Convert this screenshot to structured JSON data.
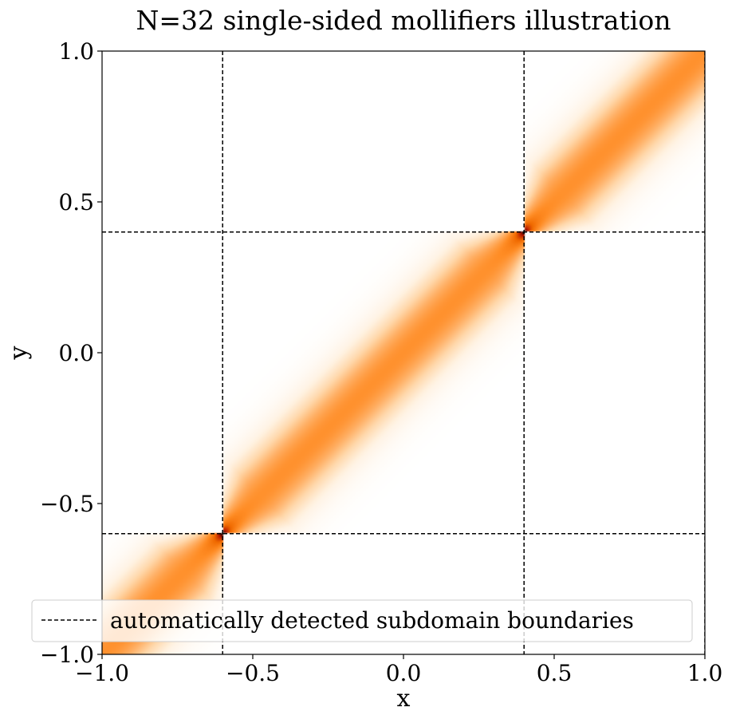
{
  "chart_data": {
    "type": "heatmap",
    "title": "N=32 single-sided mollifiers illustration",
    "xlabel": "x",
    "ylabel": "y",
    "xlim": [
      -1.0,
      1.0
    ],
    "ylim": [
      -1.0,
      1.0
    ],
    "xticks": [
      {
        "value": -1.0,
        "label": "−1.0"
      },
      {
        "value": -0.5,
        "label": "−0.5"
      },
      {
        "value": 0.0,
        "label": "0.0"
      },
      {
        "value": 0.5,
        "label": "0.5"
      },
      {
        "value": 1.0,
        "label": "1.0"
      }
    ],
    "yticks": [
      {
        "value": -1.0,
        "label": "−1.0"
      },
      {
        "value": -0.5,
        "label": "−0.5"
      },
      {
        "value": 0.0,
        "label": "0.0"
      },
      {
        "value": 0.5,
        "label": "0.5"
      },
      {
        "value": 1.0,
        "label": "1.0"
      }
    ],
    "colormap": [
      "#ffffff",
      "#fff3e4",
      "#ffd9ad",
      "#ffb066",
      "#ff8c24",
      "#f06a00",
      "#b81800",
      "#000000"
    ],
    "subdomains": [
      {
        "x0": -1.0,
        "x1": -0.6,
        "y0": -1.0,
        "y1": -0.6,
        "tip": "top-right"
      },
      {
        "x0": -0.6,
        "x1": 0.4,
        "y0": -0.6,
        "y1": 0.4,
        "tip": "both"
      },
      {
        "x0": 0.4,
        "x1": 1.0,
        "y0": 0.4,
        "y1": 1.0,
        "tip": "bottom-left"
      }
    ],
    "boundaries": {
      "vertical": [
        -0.6,
        0.4,
        1.0
      ],
      "horizontal": [
        -0.6,
        0.4
      ]
    },
    "legend": {
      "entries": [
        "automatically detected subdomain boundaries"
      ],
      "placement": "lower-left",
      "line_style": "dashed",
      "color": "#000000"
    },
    "grid": false
  }
}
